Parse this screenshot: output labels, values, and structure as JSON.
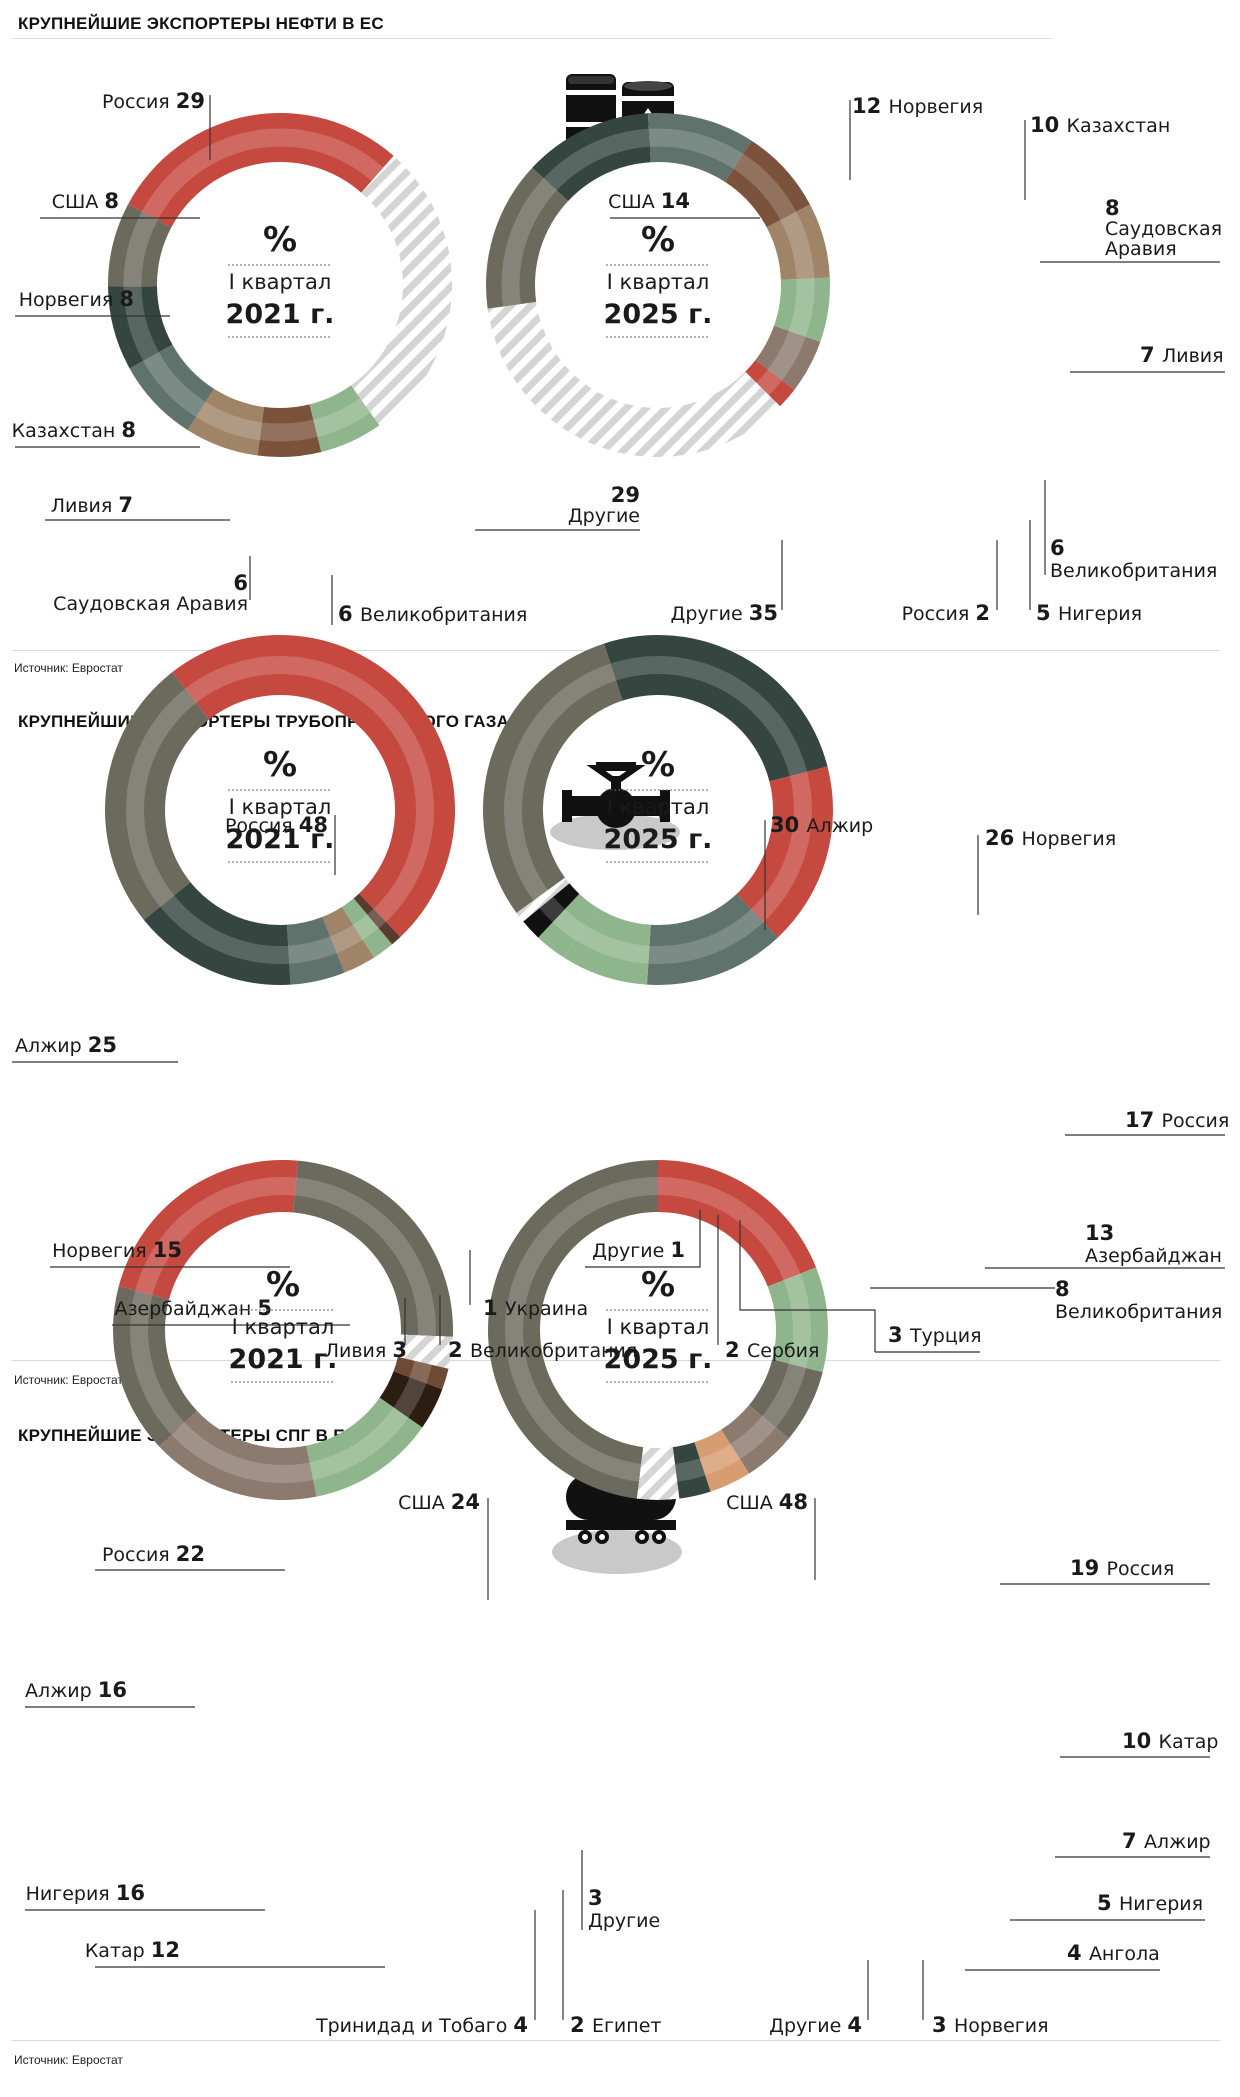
{
  "sections": [
    {
      "title": "КРУПНЕЙШИЕ ЭКСПОРТЕРЫ НЕФТИ В ЕС",
      "source": "Источник: Евростат",
      "icon": "oil-barrels-icon"
    },
    {
      "title": "КРУПНЕЙШИЕ ЭКСПОРТЕРЫ ТРУБОПРОВОДНОГО ГАЗА В ЕС",
      "source": "Источник: Евростат",
      "icon": "pipeline-valve-icon"
    },
    {
      "title": "КРУПНЕЙШИЕ ЭКСПОРТЕРЫ СПГ В ЕС",
      "source": "Источник: Евростат",
      "icon": "tank-car-icon"
    }
  ],
  "center_text": {
    "pct": "%",
    "quarter": "I квартал"
  },
  "colors": {
    "russia": "#c5493f",
    "usa": "#6c6a5d",
    "norway": "#34463f",
    "kazakhstan": "#5f726b",
    "libya": "#a08468",
    "saudi": "#7b523c",
    "uk": "#8fb58c",
    "other": "#dedede",
    "nigeria": "#8c7a6e",
    "algeria": "#6c6a5d",
    "azerbaijan": "#5f726b",
    "ukraine": "#5a3c2e",
    "serbia": "#111111",
    "turkey": "#8fb58c",
    "qatar": "#8fb58c",
    "trinidad": "#2b1d12",
    "egypt": "#6e4a35",
    "angola": "#d79c70"
  },
  "chart_data": [
    {
      "type": "pie",
      "title": "КРУПНЕЙШИЕ ЭКСПОРТЕРЫ НЕФТИ В ЕС",
      "period": "2021 г.",
      "unit": "%",
      "categories": [
        "Россия",
        "Другие",
        "Великобритания",
        "Саудовская Аравия",
        "Ливия",
        "Казахстан",
        "Норвегия",
        "США"
      ],
      "values": [
        29,
        29,
        6,
        6,
        7,
        8,
        8,
        8
      ]
    },
    {
      "type": "pie",
      "title": "КРУПНЕЙШИЕ ЭКСПОРТЕРЫ НЕФТИ В ЕС",
      "period": "2025 г.",
      "unit": "%",
      "categories": [
        "Норвегия",
        "Казахстан",
        "Саудовская Аравия",
        "Ливия",
        "Великобритания",
        "Нигерия",
        "Россия",
        "Другие",
        "США"
      ],
      "values": [
        12,
        10,
        8,
        7,
        6,
        5,
        2,
        35,
        14
      ]
    },
    {
      "type": "pie",
      "title": "КРУПНЕЙШИЕ ЭКСПОРТЕРЫ ТРУБОПРОВОДНОГО ГАЗА В ЕС",
      "period": "2021 г.",
      "unit": "%",
      "categories": [
        "Россия",
        "Украина",
        "Великобритания",
        "Ливия",
        "Азербайджан",
        "Норвегия",
        "Алжир"
      ],
      "values": [
        48,
        1,
        2,
        3,
        5,
        15,
        25
      ]
    },
    {
      "type": "pie",
      "title": "КРУПНЕЙШИЕ ЭКСПОРТЕРЫ ТРУБОПРОВОДНОГО ГАЗА В ЕС",
      "period": "2025 г.",
      "unit": "%",
      "categories": [
        "Норвегия",
        "Россия",
        "Азербайджан",
        "Великобритания",
        "Турция",
        "Сербия",
        "Другие",
        "Алжир"
      ],
      "values": [
        26,
        17,
        13,
        8,
        3,
        2,
        1,
        30
      ]
    },
    {
      "type": "pie",
      "title": "КРУПНЕЙШИЕ ЭКСПОРТЕРЫ СПГ В ЕС",
      "period": "2021 г.",
      "unit": "%",
      "categories": [
        "США",
        "Другие",
        "Египет",
        "Тринидад и Тобаго",
        "Катар",
        "Нигерия",
        "Алжир",
        "Россия"
      ],
      "values": [
        24,
        3,
        2,
        4,
        12,
        16,
        16,
        22
      ]
    },
    {
      "type": "pie",
      "title": "КРУПНЕЙШИЕ ЭКСПОРТЕРЫ СПГ В ЕС",
      "period": "2025 г.",
      "unit": "%",
      "categories": [
        "Россия",
        "Катар",
        "Алжир",
        "Нигерия",
        "Ангола",
        "Норвегия",
        "Другие",
        "США"
      ],
      "values": [
        19,
        10,
        7,
        5,
        4,
        3,
        4,
        48
      ]
    }
  ]
}
